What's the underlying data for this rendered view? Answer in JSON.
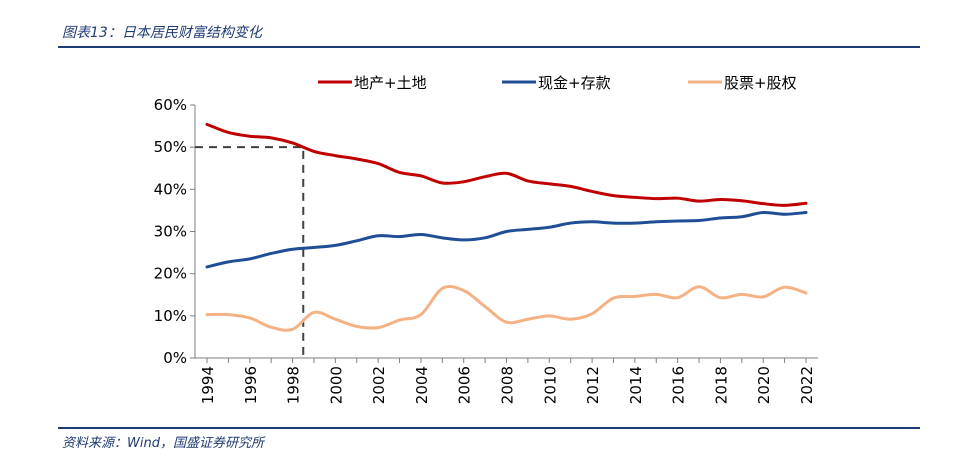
{
  "header": {
    "title": "图表13：日本居民财富结构变化"
  },
  "footer": {
    "source": "资料来源：Wind，国盛证券研究所"
  },
  "colors": {
    "real_estate": "#c00000",
    "cash": "#1f4e96",
    "stocks": "#f4b183",
    "axis": "#7f7f7f",
    "guide": "#404040"
  },
  "chart_data": {
    "type": "line",
    "title": "",
    "xlabel": "",
    "ylabel": "",
    "ylim": [
      0,
      0.6
    ],
    "yticks": [
      0,
      0.1,
      0.2,
      0.3,
      0.4,
      0.5,
      0.6
    ],
    "ytick_labels": [
      "0%",
      "10%",
      "20%",
      "30%",
      "40%",
      "50%",
      "60%"
    ],
    "xlim": [
      1994,
      2022
    ],
    "xtick_labels": [
      "1994",
      "1996",
      "1998",
      "2000",
      "2002",
      "2004",
      "2006",
      "2008",
      "2010",
      "2012",
      "2014",
      "2016",
      "2018",
      "2020",
      "2022"
    ],
    "legend": {
      "position": "top",
      "entries": [
        "地产+土地",
        "现金+存款",
        "股票+股权"
      ]
    },
    "grid": false,
    "annotation": {
      "type": "dashed-guide",
      "x": 1998.5,
      "y": 0.5
    },
    "x": [
      1994,
      1995,
      1996,
      1997,
      1998,
      1999,
      2000,
      2001,
      2002,
      2003,
      2004,
      2005,
      2006,
      2007,
      2008,
      2009,
      2010,
      2011,
      2012,
      2013,
      2014,
      2015,
      2016,
      2017,
      2018,
      2019,
      2020,
      2021,
      2022
    ],
    "series": [
      {
        "name": "地产+土地",
        "color_key": "real_estate",
        "values": [
          0.554,
          0.535,
          0.526,
          0.522,
          0.51,
          0.49,
          0.48,
          0.472,
          0.461,
          0.44,
          0.432,
          0.415,
          0.418,
          0.43,
          0.438,
          0.42,
          0.413,
          0.407,
          0.395,
          0.385,
          0.381,
          0.378,
          0.379,
          0.372,
          0.376,
          0.373,
          0.366,
          0.362,
          0.367
        ]
      },
      {
        "name": "现金+存款",
        "color_key": "cash",
        "values": [
          0.216,
          0.228,
          0.235,
          0.248,
          0.258,
          0.262,
          0.267,
          0.278,
          0.29,
          0.288,
          0.293,
          0.285,
          0.28,
          0.285,
          0.3,
          0.305,
          0.31,
          0.32,
          0.323,
          0.32,
          0.32,
          0.323,
          0.325,
          0.326,
          0.332,
          0.335,
          0.345,
          0.341,
          0.345
        ]
      },
      {
        "name": "股票+股权",
        "color_key": "stocks",
        "values": [
          0.103,
          0.103,
          0.095,
          0.073,
          0.068,
          0.108,
          0.092,
          0.075,
          0.072,
          0.09,
          0.103,
          0.165,
          0.16,
          0.122,
          0.085,
          0.092,
          0.1,
          0.092,
          0.105,
          0.142,
          0.146,
          0.151,
          0.143,
          0.169,
          0.143,
          0.151,
          0.145,
          0.168,
          0.154
        ]
      }
    ]
  }
}
